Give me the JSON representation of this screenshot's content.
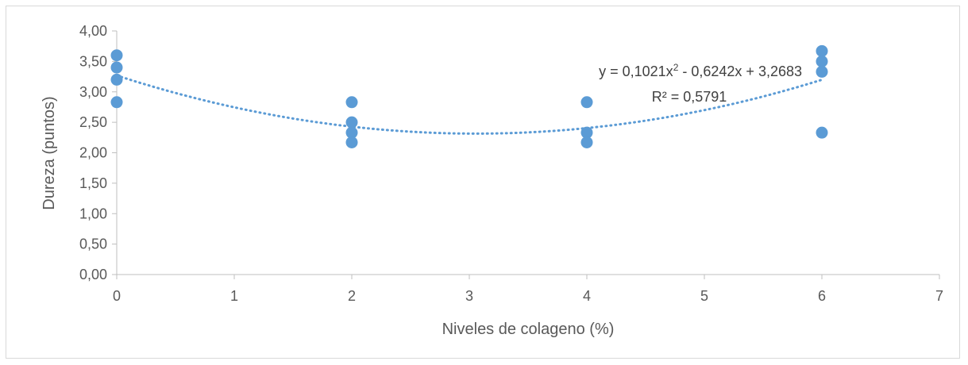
{
  "chart_data": {
    "type": "scatter",
    "title": "",
    "xlabel": "Niveles de colageno (%)",
    "ylabel": "Dureza (puntos)",
    "xlim": [
      0,
      7
    ],
    "ylim": [
      0,
      4
    ],
    "x_ticks": [
      "0",
      "1",
      "2",
      "3",
      "4",
      "5",
      "6",
      "7"
    ],
    "y_ticks": [
      "0,00",
      "0,50",
      "1,00",
      "1,50",
      "2,00",
      "2,50",
      "3,00",
      "3,50",
      "4,00"
    ],
    "grid": false,
    "legend": "none",
    "points": [
      {
        "x": 0,
        "y": 3.6
      },
      {
        "x": 0,
        "y": 3.4
      },
      {
        "x": 0,
        "y": 3.2
      },
      {
        "x": 0,
        "y": 2.83
      },
      {
        "x": 2,
        "y": 2.83
      },
      {
        "x": 2,
        "y": 2.5
      },
      {
        "x": 2,
        "y": 2.33
      },
      {
        "x": 2,
        "y": 2.17
      },
      {
        "x": 4,
        "y": 2.83
      },
      {
        "x": 4,
        "y": 2.33
      },
      {
        "x": 4,
        "y": 2.17
      },
      {
        "x": 6,
        "y": 3.67
      },
      {
        "x": 6,
        "y": 3.5
      },
      {
        "x": 6,
        "y": 3.33
      },
      {
        "x": 6,
        "y": 2.33
      }
    ],
    "trendline": {
      "type": "polynomial",
      "coefficients": [
        0.1021,
        -0.6242,
        3.2683
      ],
      "x_range": [
        0,
        6
      ],
      "equation_prefix": "y = 0,1021x",
      "equation_exponent": "2",
      "equation_suffix": " - 0,6242x + 3,2683",
      "r_squared_label": "R² = 0,5791"
    },
    "colors": {
      "marker": "#5b9bd5",
      "trendline": "#5b9bd5",
      "axis": "#bfbfbf",
      "text": "#595959"
    }
  }
}
